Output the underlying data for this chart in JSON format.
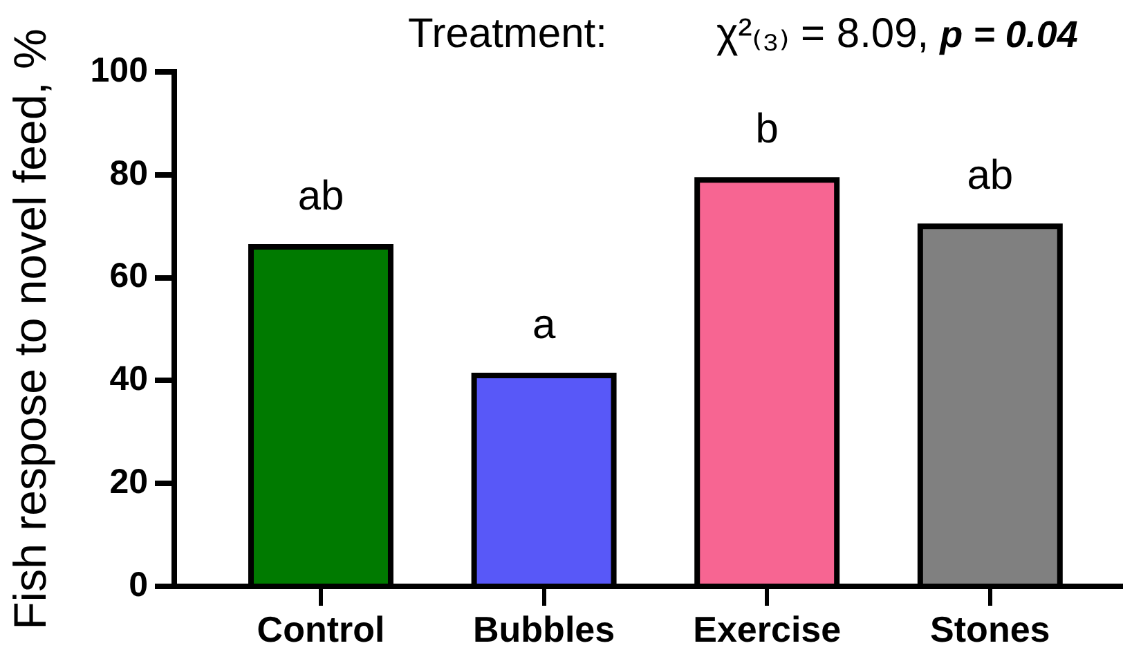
{
  "chart_data": {
    "type": "bar",
    "categories": [
      "Control",
      "Bubbles",
      "Exercise",
      "Stones"
    ],
    "values": [
      66,
      41,
      79,
      70
    ],
    "colors": [
      "#007a00",
      "#5858f8",
      "#f76592",
      "#808080"
    ],
    "ylabel": "Fish respose to novel feed, %",
    "ylim": [
      0,
      100
    ],
    "yticks": [
      0,
      20,
      40,
      60,
      80,
      100
    ],
    "grid": false,
    "legend": false,
    "annotations": [
      "Treatment:",
      "χ²₍₃₎ = 8.09,",
      "p = 0.04",
      {
        "text": "ab",
        "x": "Control",
        "y": 66
      },
      {
        "text": "a",
        "x": "Bubbles",
        "y": 41
      },
      {
        "text": "b",
        "x": "Exercise",
        "y": 79
      },
      {
        "text": "ab",
        "x": "Stones",
        "y": 70
      }
    ]
  }
}
